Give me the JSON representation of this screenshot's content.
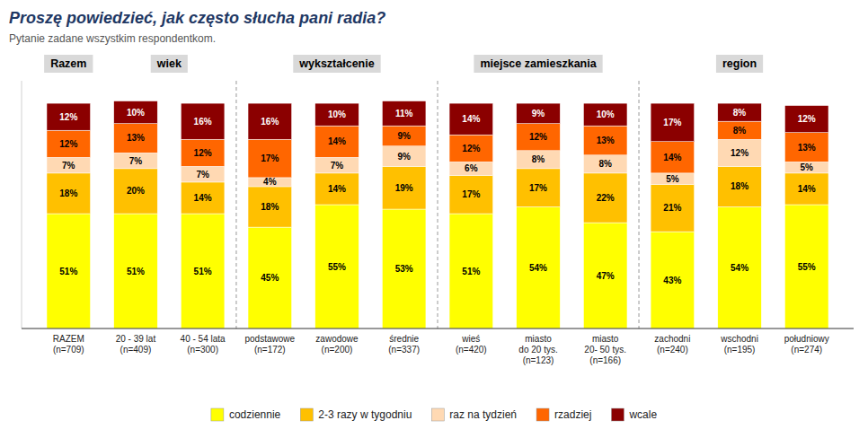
{
  "chart_data": {
    "type": "bar",
    "stacked": true,
    "title": "Proszę powiedzieć, jak często słucha pani radia?",
    "subtitle": "Pytanie zadane wszystkim respondentkom.",
    "categories": [
      "RAZEM\n(n=709)",
      "20 - 39 lat\n(n=409)",
      "40 - 54 lata\n(n=300)",
      "podstawowe\n(n=172)",
      "zawodowe\n(n=200)",
      "średnie\n(n=337)",
      "wieś\n(n=420)",
      "miasto\ndo 20 tys.\n(n=123)",
      "miasto\n20- 50 tys.\n(n=166)",
      "zachodni\n(n=240)",
      "wschodni\n(n=195)",
      "południowy\n(n=274)"
    ],
    "annotations": [
      "Razem",
      "wiek",
      "wykształcenie",
      "miejsce zamieszkania",
      "region"
    ],
    "series": [
      {
        "name": "codziennie",
        "color": "#FFFF00",
        "values": [
          51,
          51,
          51,
          45,
          55,
          53,
          51,
          54,
          47,
          43,
          54,
          55
        ],
        "value_labels": [
          "51%",
          "51%",
          "51%",
          "45%",
          "55%",
          "53%",
          "51%",
          "54%",
          "47%",
          "43%",
          "54%",
          "55%"
        ]
      },
      {
        "name": "2-3 razy w tygodniu",
        "color": "#FFC000",
        "values": [
          18,
          20,
          14,
          18,
          14,
          19,
          17,
          17,
          22,
          21,
          18,
          14
        ],
        "value_labels": [
          "18%",
          "20%",
          "14%",
          "18%",
          "14%",
          "19%",
          "17%",
          "17%",
          "22%",
          "21%",
          "18%",
          "14%"
        ]
      },
      {
        "name": "raz na tydzień",
        "color": "#FFD9B3",
        "values": [
          7,
          7,
          7,
          4,
          7,
          9,
          6,
          8,
          8,
          5,
          12,
          5
        ],
        "value_labels": [
          "7%",
          "7%",
          "7%",
          "4%",
          "7%",
          "9%",
          "6%",
          "8%",
          "8%",
          "5%",
          "12%",
          "5%"
        ]
      },
      {
        "name": "rzadziej",
        "color": "#FF6600",
        "values": [
          12,
          13,
          12,
          17,
          14,
          9,
          12,
          12,
          13,
          14,
          8,
          13
        ],
        "value_labels": [
          "12%",
          "13%",
          "12%",
          "17%",
          "14%",
          "9%",
          "12%",
          "12%",
          "13%",
          "14%",
          "8%",
          "13%"
        ]
      },
      {
        "name": "wcale",
        "color": "#8B0000",
        "values": [
          12,
          10,
          16,
          16,
          10,
          11,
          14,
          9,
          10,
          17,
          8,
          12
        ],
        "value_labels": [
          "12%",
          "10%",
          "16%",
          "16%",
          "10%",
          "11%",
          "14%",
          "9%",
          "10%",
          "17%",
          "8%",
          "12%"
        ]
      }
    ],
    "ylim": [
      0,
      110
    ],
    "data_labels": true,
    "tick_labels": "x",
    "grid": false,
    "legend": "bottom"
  }
}
